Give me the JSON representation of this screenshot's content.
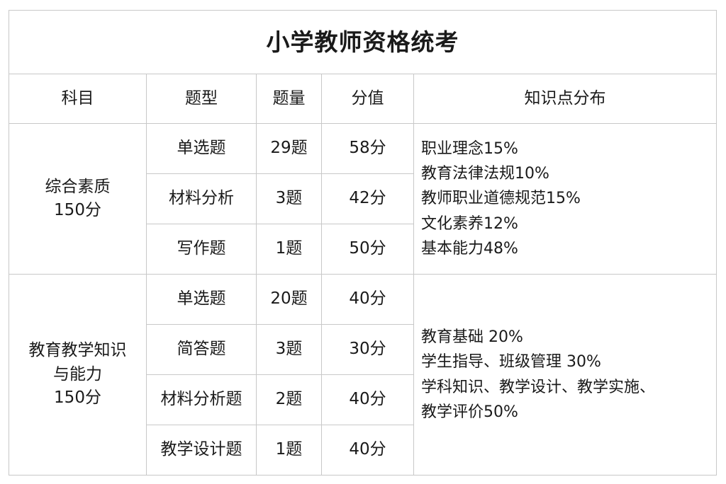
{
  "title": "小学教师资格统考",
  "headers": [
    "科目",
    "题型",
    "题量",
    "分值",
    "知识点分布"
  ],
  "subjects": [
    {
      "name_lines": [
        "综合素质",
        "150分"
      ],
      "rows": [
        {
          "type": "单选题",
          "count": "29题",
          "score": "58分"
        },
        {
          "type": "材料分析",
          "count": "3题",
          "score": "42分"
        },
        {
          "type": "写作题",
          "count": "1题",
          "score": "50分"
        }
      ],
      "knowledge": [
        "职业理念15%",
        "教育法律法规10%",
        "教师职业道德规范15%",
        "文化素养12%",
        "基本能力48%"
      ]
    },
    {
      "name_lines": [
        "教育教学知识",
        "与能力",
        "150分"
      ],
      "rows": [
        {
          "type": "单选题",
          "count": "20题",
          "score": "40分"
        },
        {
          "type": "简答题",
          "count": "3题",
          "score": "30分"
        },
        {
          "type": "材料分析题",
          "count": "2题",
          "score": "40分"
        },
        {
          "type": "教学设计题",
          "count": "1题",
          "score": "40分"
        }
      ],
      "knowledge": [
        "教育基础 20%",
        "学生指导、班级管理 30%",
        "学科知识、教学设计、教学实施、",
        "教学评价50%"
      ]
    }
  ]
}
